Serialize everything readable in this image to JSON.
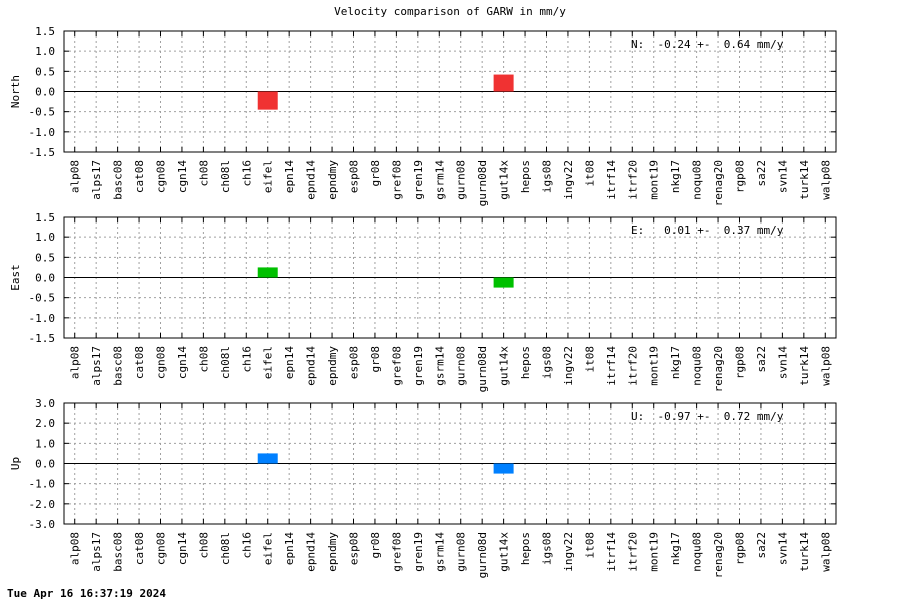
{
  "title": "Velocity comparison of GARW in mm/y",
  "timestamp": "Tue Apr 16 16:37:19 2024",
  "chart_data": [
    {
      "type": "bar",
      "ylabel": "North",
      "summary": "N:  -0.24 +-  0.64 mm/y",
      "ylim": [
        -1.5,
        1.5
      ],
      "yticks": [
        "1.5",
        "1.0",
        "0.5",
        "0.0",
        "-0.5",
        "-1.0",
        "-1.5"
      ],
      "grid": true,
      "color": "#f03232",
      "categories": [
        "alp08",
        "alps17",
        "basc08",
        "cat08",
        "cgn08",
        "cgn14",
        "ch08",
        "ch08l",
        "ch16",
        "eifel",
        "epn14",
        "epnd14",
        "epndmy",
        "esp08",
        "gr08",
        "gref08",
        "gren19",
        "gsrm14",
        "gurn08",
        "gurn08d",
        "gut14x",
        "hepos",
        "igs08",
        "ingv22",
        "it08",
        "itrf14",
        "itrf20",
        "mont19",
        "nkg17",
        "noqu08",
        "renag20",
        "rgp08",
        "sa22",
        "svn14",
        "turk14",
        "walp08"
      ],
      "values": {
        "eifel": -0.45,
        "gut14x": 0.42
      }
    },
    {
      "type": "bar",
      "ylabel": "East",
      "summary": "E:   0.01 +-  0.37 mm/y",
      "ylim": [
        -1.5,
        1.5
      ],
      "yticks": [
        "1.5",
        "1.0",
        "0.5",
        "0.0",
        "-0.5",
        "-1.0",
        "-1.5"
      ],
      "grid": true,
      "color": "#00c000",
      "categories": [
        "alp08",
        "alps17",
        "basc08",
        "cat08",
        "cgn08",
        "cgn14",
        "ch08",
        "ch08l",
        "ch16",
        "eifel",
        "epn14",
        "epnd14",
        "epndmy",
        "esp08",
        "gr08",
        "gref08",
        "gren19",
        "gsrm14",
        "gurn08",
        "gurn08d",
        "gut14x",
        "hepos",
        "igs08",
        "ingv22",
        "it08",
        "itrf14",
        "itrf20",
        "mont19",
        "nkg17",
        "noqu08",
        "renag20",
        "rgp08",
        "sa22",
        "svn14",
        "turk14",
        "walp08"
      ],
      "values": {
        "eifel": 0.25,
        "gut14x": -0.25
      }
    },
    {
      "type": "bar",
      "ylabel": "Up",
      "summary": "U:  -0.97 +-  0.72 mm/y",
      "ylim": [
        -3.0,
        3.0
      ],
      "yticks": [
        "3.0",
        "2.0",
        "1.0",
        "0.0",
        "-1.0",
        "-2.0",
        "-3.0"
      ],
      "grid": true,
      "color": "#0080ff",
      "categories": [
        "alp08",
        "alps17",
        "basc08",
        "cat08",
        "cgn08",
        "cgn14",
        "ch08",
        "ch08l",
        "ch16",
        "eifel",
        "epn14",
        "epnd14",
        "epndmy",
        "esp08",
        "gr08",
        "gref08",
        "gren19",
        "gsrm14",
        "gurn08",
        "gurn08d",
        "gut14x",
        "hepos",
        "igs08",
        "ingv22",
        "it08",
        "itrf14",
        "itrf20",
        "mont19",
        "nkg17",
        "noqu08",
        "renag20",
        "rgp08",
        "sa22",
        "svn14",
        "turk14",
        "walp08"
      ],
      "values": {
        "eifel": 0.5,
        "gut14x": -0.5
      }
    }
  ]
}
